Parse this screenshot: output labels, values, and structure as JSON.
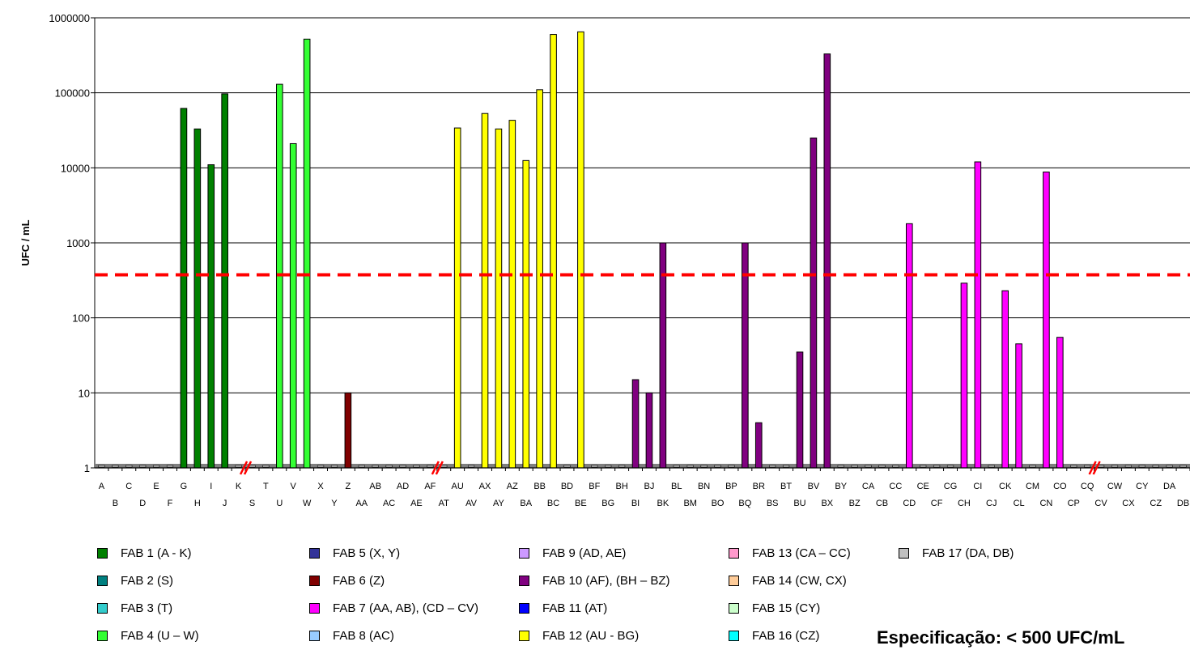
{
  "chart_data": {
    "type": "bar",
    "ylabel": "UFC / mL",
    "xlabel": "",
    "yscale": "log",
    "ylim": [
      1,
      1000000
    ],
    "yticks": [
      "1",
      "10",
      "100",
      "1000",
      "10000",
      "100000",
      "1000000"
    ],
    "grid": "horizontal",
    "reference_line": {
      "value": 375,
      "color": "#ff0000",
      "style": "dashed"
    },
    "categories": [
      "A",
      "B",
      "C",
      "D",
      "E",
      "F",
      "G",
      "H",
      "I",
      "J",
      "K",
      "S",
      "T",
      "U",
      "V",
      "W",
      "X",
      "Y",
      "Z",
      "AA",
      "AB",
      "AC",
      "AD",
      "AE",
      "AF",
      "AT",
      "AU",
      "AV",
      "AX",
      "AY",
      "AZ",
      "BA",
      "BB",
      "BC",
      "BD",
      "BE",
      "BF",
      "BG",
      "BH",
      "BI",
      "BJ",
      "BK",
      "BL",
      "BM",
      "BN",
      "BO",
      "BP",
      "BQ",
      "BR",
      "BS",
      "BT",
      "BU",
      "BV",
      "BX",
      "BY",
      "BZ",
      "CA",
      "CB",
      "CC",
      "CD",
      "CE",
      "CF",
      "CG",
      "CH",
      "CI",
      "CJ",
      "CK",
      "CL",
      "CM",
      "CN",
      "CO",
      "CP",
      "CQ",
      "CV",
      "CW",
      "CX",
      "CY",
      "CZ",
      "DA",
      "DB"
    ],
    "values": [
      1,
      1,
      1,
      1,
      1,
      1,
      62000,
      33000,
      11000,
      97000,
      1,
      1,
      1,
      130000,
      21000,
      520000,
      1,
      1,
      10,
      1,
      1,
      1,
      1,
      1,
      1,
      1,
      34000,
      1,
      53000,
      33000,
      43000,
      12500,
      110000,
      600000,
      1,
      650000,
      1,
      1,
      1,
      15,
      10,
      1000,
      1,
      1,
      1,
      1,
      1,
      1000,
      4,
      1,
      1,
      35,
      25000,
      330000,
      1,
      1,
      1,
      1,
      1,
      1800,
      1,
      1,
      1,
      290,
      12000,
      1,
      230,
      45,
      1,
      8800,
      55,
      1,
      1,
      1,
      1,
      1,
      1,
      1,
      1,
      1
    ],
    "bar_colors": [
      "#d9d9d9",
      "#d9d9d9",
      "#d9d9d9",
      "#d9d9d9",
      "#d9d9d9",
      "#d9d9d9",
      "#008000",
      "#008000",
      "#008000",
      "#008000",
      "#d9d9d9",
      "#d9d9d9",
      "#d9d9d9",
      "#33ff33",
      "#33ff33",
      "#33ff33",
      "#d9d9d9",
      "#d9d9d9",
      "#800000",
      "#d9d9d9",
      "#d9d9d9",
      "#d9d9d9",
      "#d9d9d9",
      "#d9d9d9",
      "#d9d9d9",
      "#d9d9d9",
      "#ffff00",
      "#d9d9d9",
      "#ffff00",
      "#ffff00",
      "#ffff00",
      "#ffff00",
      "#ffff00",
      "#ffff00",
      "#d9d9d9",
      "#ffff00",
      "#d9d9d9",
      "#d9d9d9",
      "#d9d9d9",
      "#800080",
      "#800080",
      "#800080",
      "#d9d9d9",
      "#d9d9d9",
      "#d9d9d9",
      "#d9d9d9",
      "#d9d9d9",
      "#800080",
      "#800080",
      "#d9d9d9",
      "#d9d9d9",
      "#800080",
      "#800080",
      "#800080",
      "#d9d9d9",
      "#d9d9d9",
      "#d9d9d9",
      "#d9d9d9",
      "#d9d9d9",
      "#ff00ff",
      "#d9d9d9",
      "#d9d9d9",
      "#d9d9d9",
      "#ff00ff",
      "#ff00ff",
      "#d9d9d9",
      "#ff00ff",
      "#ff00ff",
      "#d9d9d9",
      "#ff00ff",
      "#ff00ff",
      "#d9d9d9",
      "#d9d9d9",
      "#d9d9d9",
      "#d9d9d9",
      "#d9d9d9",
      "#d9d9d9",
      "#d9d9d9",
      "#d9d9d9",
      "#d9d9d9"
    ],
    "axis_breaks_after": [
      "K",
      "AF",
      "CQ"
    ],
    "legend": [
      {
        "label": "FAB 1 (A - K)",
        "color": "#008000"
      },
      {
        "label": "FAB 2 (S)",
        "color": "#008080"
      },
      {
        "label": "FAB 3 (T)",
        "color": "#33cccc"
      },
      {
        "label": "FAB 4 (U – W)",
        "color": "#33ff33"
      },
      {
        "label": "FAB 5 (X, Y)",
        "color": "#333399"
      },
      {
        "label": "FAB 6 (Z)",
        "color": "#800000"
      },
      {
        "label": "FAB 7 (AA, AB), (CD – CV)",
        "color": "#ff00ff"
      },
      {
        "label": "FAB 8 (AC)",
        "color": "#99ccff"
      },
      {
        "label": "FAB 9 (AD, AE)",
        "color": "#cc99ff"
      },
      {
        "label": "FAB 10 (AF), (BH – BZ)",
        "color": "#800080"
      },
      {
        "label": "FAB 11 (AT)",
        "color": "#0000ff"
      },
      {
        "label": "FAB 12 (AU - BG)",
        "color": "#ffff00"
      },
      {
        "label": "FAB 13 (CA – CC)",
        "color": "#ff99cc"
      },
      {
        "label": "FAB 14 (CW, CX)",
        "color": "#ffcc99"
      },
      {
        "label": "FAB 15 (CY)",
        "color": "#ccffcc"
      },
      {
        "label": "FAB 16 (CZ)",
        "color": "#00ffff"
      },
      {
        "label": "FAB 17 (DA, DB)",
        "color": "#c0c0c0"
      }
    ],
    "annotation": "Especificação: < 500 UFC/mL"
  }
}
